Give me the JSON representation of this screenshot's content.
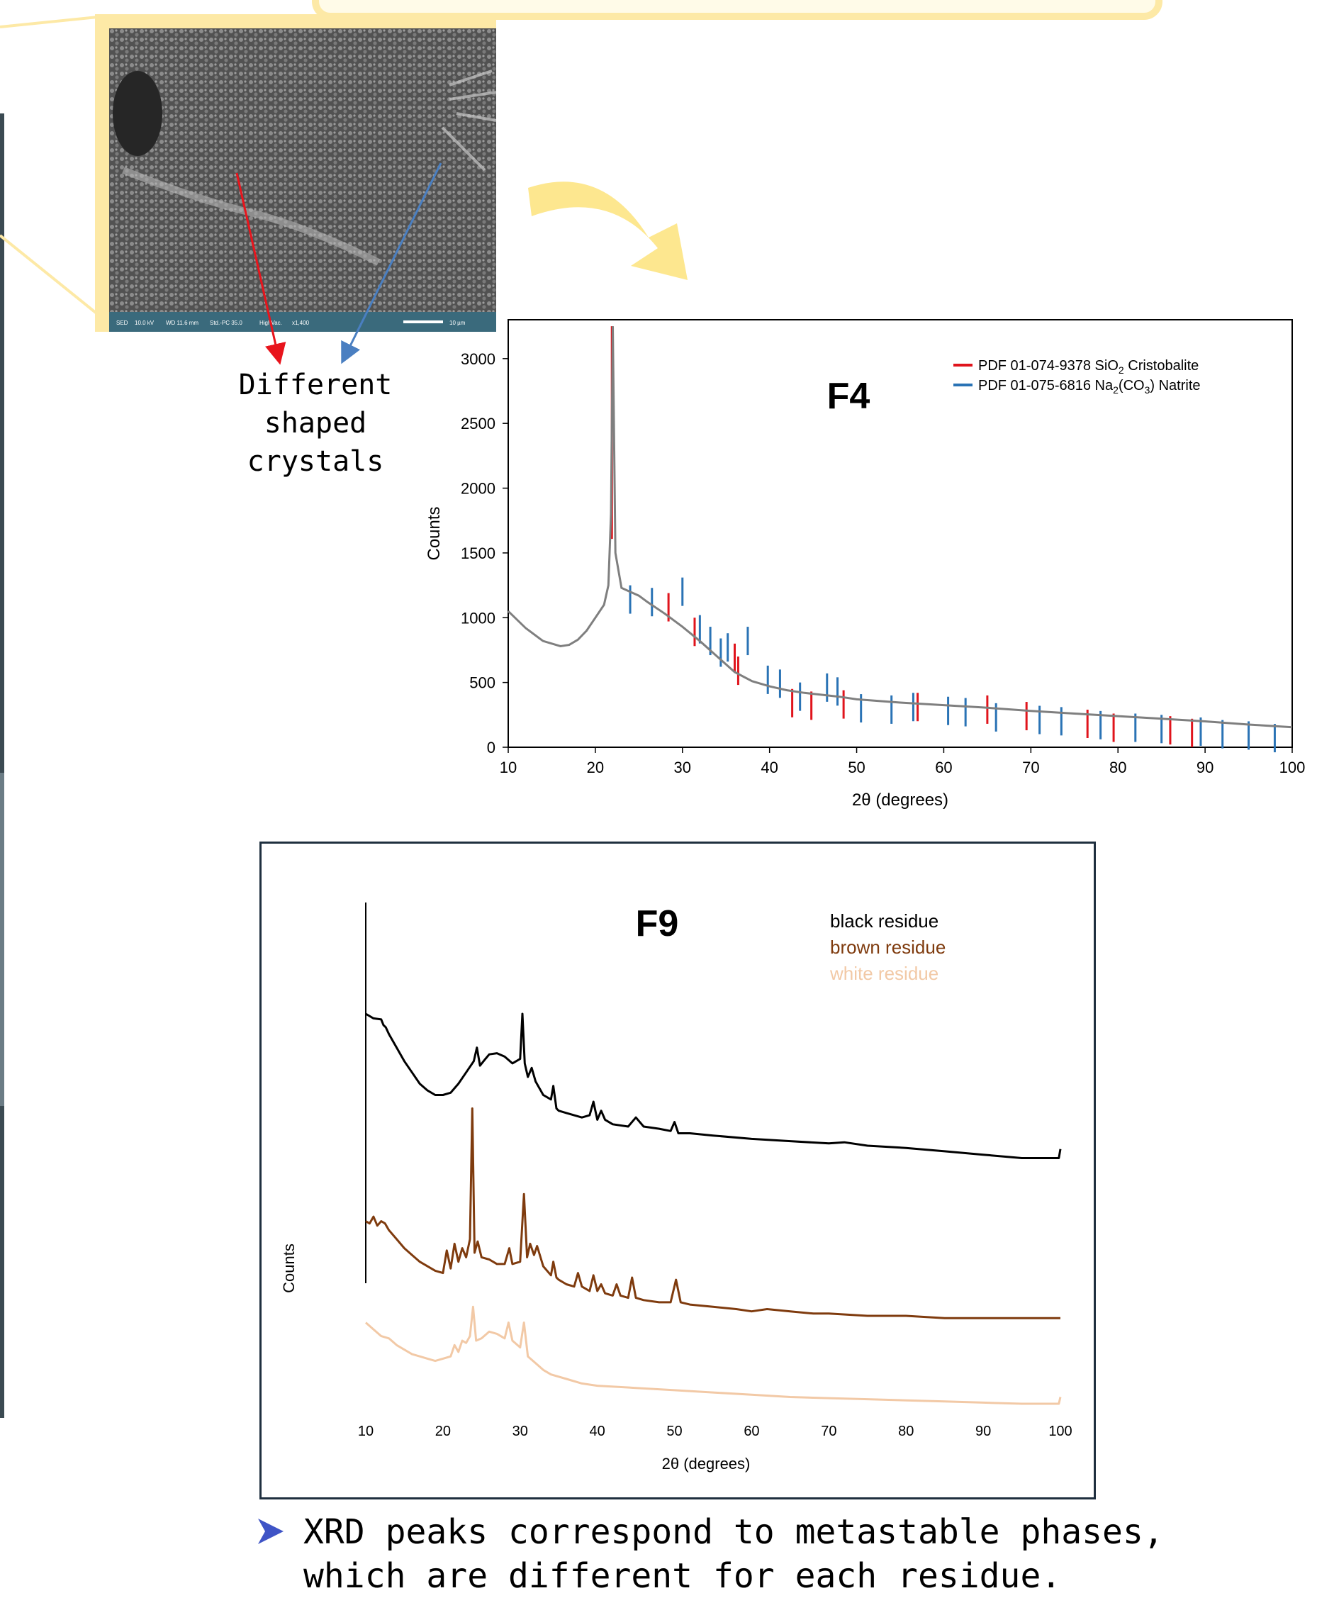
{
  "sem_panel": {
    "footer_labels": [
      "SED",
      "10.0 kV",
      "WD 11.6 mm",
      "Std.-PC 35.0",
      "HighVac.",
      "x1,400",
      "10 µm"
    ],
    "callout": [
      "Different",
      "shaped crystals"
    ],
    "arrow_colors": {
      "red": "#e8141c",
      "blue": "#4a7fc1"
    },
    "frame_color": "#fde9a6"
  },
  "transition_arrow_color": "#fde78f",
  "chart_data": [
    {
      "type": "line",
      "title": "F4",
      "xlabel": "2θ (degrees)",
      "ylabel": "Counts",
      "xlim": [
        10,
        100
      ],
      "ylim": [
        0,
        3300
      ],
      "xticks": [
        10,
        20,
        30,
        40,
        50,
        60,
        70,
        80,
        90,
        100
      ],
      "yticks": [
        0,
        500,
        1000,
        1500,
        2000,
        2500,
        3000
      ],
      "legend": {
        "position": "top-right",
        "entries": [
          {
            "prefix": "PDF 01-074-9378 SiO",
            "sub": "2",
            "suffix": " Cristobalite",
            "color": "#e0141c"
          },
          {
            "prefix": "PDF 01-075-6816 Na",
            "sub": "2",
            "mid": "(CO",
            "sub2": "3",
            "suffix": ") Natrite",
            "color": "#2a73b5"
          }
        ]
      },
      "series": [
        {
          "color": "#7f7f7f",
          "x": [
            10,
            12,
            14,
            16,
            17,
            18,
            19,
            20,
            21,
            21.5,
            21.8,
            22,
            22.3,
            23,
            24,
            25,
            26,
            28,
            30,
            32,
            34,
            36,
            38,
            40,
            42,
            44,
            46,
            48,
            50,
            55,
            60,
            65,
            70,
            75,
            80,
            85,
            90,
            95,
            100
          ],
          "y": [
            1050,
            920,
            820,
            780,
            790,
            830,
            900,
            1000,
            1100,
            1250,
            1800,
            3250,
            1500,
            1230,
            1200,
            1170,
            1120,
            1030,
            930,
            820,
            700,
            580,
            510,
            470,
            440,
            420,
            405,
            390,
            370,
            345,
            325,
            305,
            280,
            260,
            240,
            220,
            200,
            175,
            155
          ]
        }
      ],
      "ref_peaks": [
        {
          "color": "#e0141c",
          "peaks": [
            [
              21.9,
              3250
            ],
            [
              28.4,
              1190
            ],
            [
              31.4,
              1000
            ],
            [
              36.0,
              800
            ],
            [
              36.4,
              700
            ],
            [
              42.6,
              450
            ],
            [
              44.8,
              430
            ],
            [
              48.5,
              440
            ],
            [
              57.0,
              420
            ],
            [
              65.0,
              400
            ],
            [
              69.5,
              350
            ],
            [
              76.5,
              290
            ],
            [
              79.5,
              260
            ],
            [
              86.0,
              240
            ],
            [
              88.5,
              220
            ]
          ]
        },
        {
          "color": "#2a73b5",
          "peaks": [
            [
              24.0,
              1250
            ],
            [
              26.5,
              1230
            ],
            [
              30.0,
              1310
            ],
            [
              32.0,
              1020
            ],
            [
              33.2,
              930
            ],
            [
              34.4,
              840
            ],
            [
              35.2,
              880
            ],
            [
              37.5,
              930
            ],
            [
              39.8,
              630
            ],
            [
              41.2,
              600
            ],
            [
              43.5,
              500
            ],
            [
              46.6,
              570
            ],
            [
              47.8,
              540
            ],
            [
              50.5,
              410
            ],
            [
              54.0,
              400
            ],
            [
              56.5,
              420
            ],
            [
              60.5,
              390
            ],
            [
              62.5,
              380
            ],
            [
              66.0,
              340
            ],
            [
              71.0,
              320
            ],
            [
              73.5,
              310
            ],
            [
              78.0,
              280
            ],
            [
              82.0,
              260
            ],
            [
              85.0,
              250
            ],
            [
              89.5,
              230
            ],
            [
              92.0,
              210
            ],
            [
              95.0,
              200
            ],
            [
              98.0,
              180
            ]
          ]
        }
      ]
    },
    {
      "type": "line",
      "title": "F9",
      "xlabel": "2θ (degrees)",
      "ylabel": "Counts",
      "xlim": [
        10,
        100
      ],
      "xticks": [
        10,
        20,
        30,
        40,
        50,
        60,
        70,
        80,
        90,
        100
      ],
      "legend": {
        "position": "top-right"
      },
      "series": [
        {
          "name": "black residue",
          "color": "#000000",
          "x": [
            10,
            11,
            12,
            12.3,
            12.6,
            13,
            14,
            15,
            16,
            17,
            18,
            19,
            20,
            21,
            22,
            23,
            24,
            24.4,
            24.8,
            25.5,
            26,
            27,
            28,
            29,
            30,
            30.3,
            30.6,
            31,
            31.5,
            32,
            33,
            34,
            34.3,
            34.7,
            35,
            36,
            37,
            38,
            39,
            39.5,
            40,
            40.5,
            41,
            42,
            44,
            45,
            46,
            48,
            49.5,
            50,
            50.5,
            52,
            55,
            60,
            65,
            70,
            72,
            75,
            80,
            85,
            90,
            95,
            99.8,
            100
          ],
          "y": [
            0.0,
            0.02,
            0.025,
            0.05,
            0.06,
            0.09,
            0.15,
            0.21,
            0.26,
            0.31,
            0.34,
            0.36,
            0.36,
            0.35,
            0.31,
            0.26,
            0.21,
            0.15,
            0.23,
            0.2,
            0.18,
            0.175,
            0.19,
            0.22,
            0.2,
            0.0,
            0.22,
            0.28,
            0.24,
            0.3,
            0.36,
            0.38,
            0.32,
            0.42,
            0.43,
            0.44,
            0.45,
            0.46,
            0.45,
            0.39,
            0.47,
            0.43,
            0.47,
            0.49,
            0.5,
            0.46,
            0.5,
            0.51,
            0.52,
            0.48,
            0.53,
            0.53,
            0.54,
            0.555,
            0.565,
            0.575,
            0.57,
            0.585,
            0.595,
            0.61,
            0.625,
            0.64,
            0.64,
            0.6
          ]
        },
        {
          "name": "brown residue",
          "color": "#7f3b0e",
          "x": [
            10,
            10.5,
            11,
            11.5,
            12,
            12.5,
            13,
            14,
            15,
            16,
            17,
            18,
            19,
            20,
            20.5,
            21,
            21.5,
            22,
            22.5,
            23,
            23.5,
            23.8,
            24.1,
            24.5,
            25,
            26,
            27,
            28,
            28.6,
            29,
            30,
            30.5,
            30.9,
            31.3,
            31.8,
            32.2,
            33,
            34,
            34.3,
            34.7,
            35,
            36,
            37,
            37.5,
            38,
            39,
            39.5,
            40,
            40.5,
            41,
            42,
            42.5,
            43,
            44,
            44.5,
            45,
            46,
            48,
            49.5,
            50.2,
            50.8,
            52,
            55,
            58,
            60,
            62,
            65,
            68,
            70,
            75,
            80,
            85,
            90,
            95,
            100
          ],
          "y": [
            0.92,
            0.93,
            0.9,
            0.94,
            0.92,
            0.93,
            0.96,
            1.0,
            1.04,
            1.07,
            1.1,
            1.12,
            1.14,
            1.15,
            1.05,
            1.13,
            1.02,
            1.1,
            1.04,
            1.08,
            1.0,
            0.42,
            1.06,
            1.01,
            1.08,
            1.09,
            1.11,
            1.11,
            1.04,
            1.11,
            1.1,
            0.8,
            1.08,
            1.02,
            1.07,
            1.03,
            1.12,
            1.16,
            1.1,
            1.17,
            1.18,
            1.2,
            1.21,
            1.15,
            1.21,
            1.23,
            1.16,
            1.23,
            1.2,
            1.24,
            1.25,
            1.2,
            1.25,
            1.26,
            1.17,
            1.26,
            1.27,
            1.28,
            1.28,
            1.18,
            1.28,
            1.29,
            1.3,
            1.31,
            1.32,
            1.31,
            1.32,
            1.33,
            1.33,
            1.34,
            1.34,
            1.35,
            1.35,
            1.35,
            1.35
          ]
        },
        {
          "name": "white residue",
          "color": "#f2c9a6",
          "x": [
            10,
            11,
            12,
            13,
            14,
            15,
            16,
            17,
            18,
            19,
            20,
            21,
            21.5,
            22,
            22.5,
            23,
            23.5,
            23.9,
            24.3,
            25,
            26,
            27,
            28,
            28.5,
            29,
            30,
            30.5,
            31,
            32,
            33,
            34,
            36,
            38,
            40,
            45,
            50,
            55,
            60,
            65,
            70,
            75,
            80,
            85,
            90,
            95,
            99.8,
            100
          ],
          "y": [
            1.37,
            1.4,
            1.43,
            1.44,
            1.47,
            1.49,
            1.51,
            1.52,
            1.53,
            1.54,
            1.53,
            1.52,
            1.47,
            1.5,
            1.45,
            1.46,
            1.43,
            1.3,
            1.45,
            1.44,
            1.41,
            1.42,
            1.44,
            1.37,
            1.45,
            1.48,
            1.37,
            1.52,
            1.55,
            1.58,
            1.6,
            1.62,
            1.64,
            1.65,
            1.66,
            1.67,
            1.68,
            1.69,
            1.7,
            1.705,
            1.71,
            1.715,
            1.72,
            1.725,
            1.73,
            1.73,
            1.7
          ]
        }
      ]
    }
  ]
}
